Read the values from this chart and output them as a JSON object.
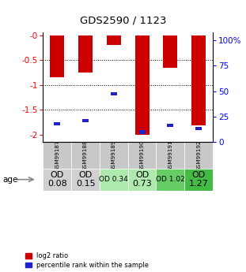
{
  "title": "GDS2590 / 1123",
  "samples": [
    "GSM99187",
    "GSM99188",
    "GSM99189",
    "GSM99190",
    "GSM99191",
    "GSM99192"
  ],
  "log2_ratio": [
    -0.85,
    -0.75,
    -0.2,
    -2.0,
    -0.65,
    -1.82
  ],
  "blue_bar_y": [
    -1.78,
    -1.72,
    -1.18,
    -1.95,
    -1.82,
    -1.88
  ],
  "od_values": [
    "OD\n0.08",
    "OD\n0.15",
    "OD 0.34",
    "OD\n0.73",
    "OD 1.02",
    "OD\n1.27"
  ],
  "od_bg_colors": [
    "#d0d0d0",
    "#d0d0d0",
    "#aeeaae",
    "#aeeaae",
    "#66cc66",
    "#44bb44"
  ],
  "od_font_sizes": [
    8,
    8,
    6.5,
    8,
    6.5,
    8
  ],
  "sample_bg_color": "#c8c8c8",
  "ylim_left": [
    -2.15,
    0.05
  ],
  "ylim_right": [
    0,
    107.5
  ],
  "yticks_left": [
    0,
    -0.5,
    -1.0,
    -1.5,
    -2.0
  ],
  "yticks_right": [
    0,
    25,
    50,
    75,
    100
  ],
  "ytick_labels_left": [
    "-0",
    "-0.5",
    "-1",
    "-1.5",
    "-2"
  ],
  "ytick_labels_right": [
    "0",
    "25",
    "50",
    "75",
    "100%"
  ],
  "bar_color_red": "#cc0000",
  "bar_color_blue": "#2222cc",
  "bar_width": 0.5,
  "blue_bar_width": 0.22,
  "blue_bar_height": 0.07,
  "legend_red": "log2 ratio",
  "legend_blue": "percentile rank within the sample",
  "age_label": "age",
  "arrow_color": "#888888"
}
